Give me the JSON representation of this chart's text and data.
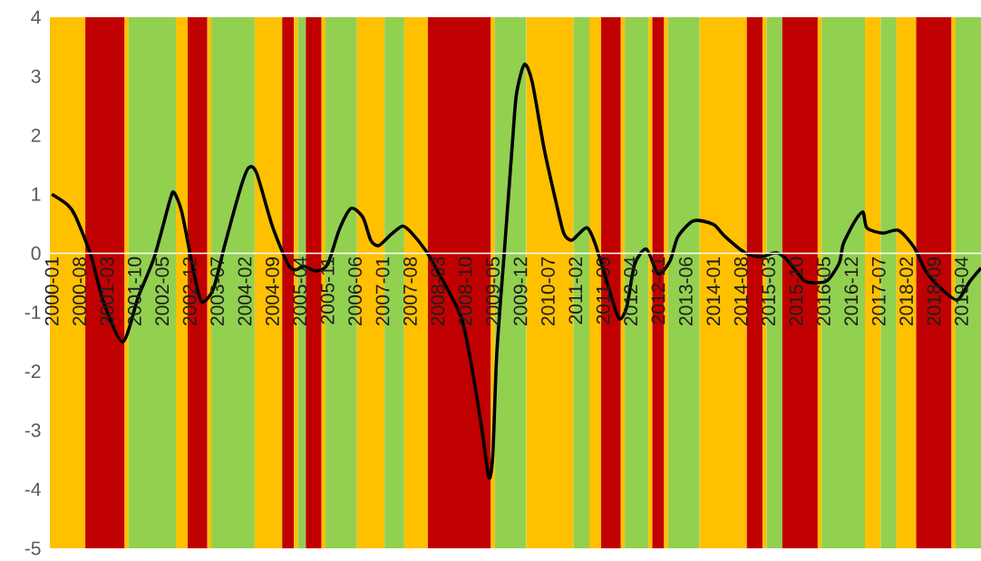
{
  "chart_data": {
    "type": "line",
    "series": [
      {
        "color": "#000000",
        "x": [
          "2000-01",
          "2000-05",
          "2000-07",
          "2000-11",
          "2001-02",
          "2001-07",
          "2001-11",
          "2002-03",
          "2002-07",
          "2002-08",
          "2002-10",
          "2003-01",
          "2003-03",
          "2003-06",
          "2003-09",
          "2004-01",
          "2004-03",
          "2004-05",
          "2004-09",
          "2005-01",
          "2005-03",
          "2005-05",
          "2005-08",
          "2005-11",
          "2006-02",
          "2006-05",
          "2006-08",
          "2006-10",
          "2006-12",
          "2007-03",
          "2007-06",
          "2007-08",
          "2007-12",
          "2008-03",
          "2008-06",
          "2008-09",
          "2008-11",
          "2009-02",
          "2009-04",
          "2009-05",
          "2009-06",
          "2009-08",
          "2009-10",
          "2009-11",
          "2010-01",
          "2010-03",
          "2010-06",
          "2010-09",
          "2010-11",
          "2011-01",
          "2011-03",
          "2011-05",
          "2011-07",
          "2011-10",
          "2012-01",
          "2012-03",
          "2012-05",
          "2012-08",
          "2012-11",
          "2013-02",
          "2013-04",
          "2013-08",
          "2014-01",
          "2014-04",
          "2014-09",
          "2015-01",
          "2015-05",
          "2015-08",
          "2015-12",
          "2016-03",
          "2016-06",
          "2016-09",
          "2016-10",
          "2017-01",
          "2017-03",
          "2017-04",
          "2017-08",
          "2017-12",
          "2018-04",
          "2018-07",
          "2018-11",
          "2019-03",
          "2019-06",
          "2019-09"
        ],
        "values": [
          1.0,
          0.82,
          0.63,
          -0.05,
          -0.8,
          -1.5,
          -0.73,
          -0.07,
          0.9,
          1.03,
          0.7,
          -0.31,
          -0.82,
          -0.61,
          0.16,
          1.12,
          1.45,
          1.36,
          0.46,
          -0.19,
          -0.28,
          -0.22,
          -0.3,
          -0.19,
          0.4,
          0.76,
          0.61,
          0.22,
          0.13,
          0.31,
          0.46,
          0.37,
          0.04,
          -0.31,
          -0.67,
          -1.09,
          -1.69,
          -2.88,
          -3.8,
          -3.4,
          -1.7,
          0.1,
          1.9,
          2.7,
          3.2,
          2.9,
          1.78,
          0.88,
          0.34,
          0.22,
          0.34,
          0.43,
          0.16,
          -0.49,
          -1.1,
          -0.91,
          -0.19,
          0.07,
          -0.35,
          -0.13,
          0.28,
          0.55,
          0.49,
          0.28,
          0.01,
          -0.06,
          0.01,
          -0.13,
          -0.46,
          -0.5,
          -0.46,
          -0.16,
          0.16,
          0.55,
          0.7,
          0.43,
          0.34,
          0.39,
          0.1,
          -0.31,
          -0.61,
          -0.79,
          -0.49,
          -0.25
        ]
      }
    ],
    "bands": [
      {
        "axis": "x",
        "from": "2000-01-01",
        "to": "2000-10-01",
        "color": "#ffc000"
      },
      {
        "axis": "x",
        "from": "2000-10-01",
        "to": "2001-08-01",
        "color": "#c00000"
      },
      {
        "axis": "x",
        "from": "2001-08-01",
        "to": "2001-09-01",
        "color": "#ffc000"
      },
      {
        "axis": "x",
        "from": "2001-09-01",
        "to": "2002-09-01",
        "color": "#92d050"
      },
      {
        "axis": "x",
        "from": "2002-09-01",
        "to": "2002-12-01",
        "color": "#ffc000"
      },
      {
        "axis": "x",
        "from": "2002-12-01",
        "to": "2003-05-01",
        "color": "#c00000"
      },
      {
        "axis": "x",
        "from": "2003-05-01",
        "to": "2003-06-01",
        "color": "#ffc000"
      },
      {
        "axis": "x",
        "from": "2003-06-01",
        "to": "2004-05-01",
        "color": "#92d050"
      },
      {
        "axis": "x",
        "from": "2004-05-01",
        "to": "2004-12-01",
        "color": "#ffc000"
      },
      {
        "axis": "x",
        "from": "2004-12-01",
        "to": "2005-03-01",
        "color": "#c00000"
      },
      {
        "axis": "x",
        "from": "2005-03-01",
        "to": "2005-04-01",
        "color": "#ffc000"
      },
      {
        "axis": "x",
        "from": "2005-04-01",
        "to": "2005-06-01",
        "color": "#92d050"
      },
      {
        "axis": "x",
        "from": "2005-06-01",
        "to": "2005-10-01",
        "color": "#c00000"
      },
      {
        "axis": "x",
        "from": "2005-10-01",
        "to": "2005-11-01",
        "color": "#ffc000"
      },
      {
        "axis": "x",
        "from": "2005-11-01",
        "to": "2006-07-01",
        "color": "#92d050"
      },
      {
        "axis": "x",
        "from": "2006-07-01",
        "to": "2007-02-01",
        "color": "#ffc000"
      },
      {
        "axis": "x",
        "from": "2007-02-01",
        "to": "2007-07-01",
        "color": "#92d050"
      },
      {
        "axis": "x",
        "from": "2007-07-01",
        "to": "2008-01-01",
        "color": "#ffc000"
      },
      {
        "axis": "x",
        "from": "2008-01-01",
        "to": "2009-05-01",
        "color": "#c00000"
      },
      {
        "axis": "x",
        "from": "2009-05-01",
        "to": "2009-06-01",
        "color": "#ffc000"
      },
      {
        "axis": "x",
        "from": "2009-06-01",
        "to": "2010-02-01",
        "color": "#92d050"
      },
      {
        "axis": "x",
        "from": "2010-02-01",
        "to": "2011-02-01",
        "color": "#ffc000"
      },
      {
        "axis": "x",
        "from": "2011-02-01",
        "to": "2011-06-01",
        "color": "#92d050"
      },
      {
        "axis": "x",
        "from": "2011-06-01",
        "to": "2011-09-01",
        "color": "#ffc000"
      },
      {
        "axis": "x",
        "from": "2011-09-01",
        "to": "2012-02-01",
        "color": "#c00000"
      },
      {
        "axis": "x",
        "from": "2012-02-01",
        "to": "2012-03-01",
        "color": "#ffc000"
      },
      {
        "axis": "x",
        "from": "2012-03-01",
        "to": "2012-09-01",
        "color": "#92d050"
      },
      {
        "axis": "x",
        "from": "2012-09-01",
        "to": "2012-10-01",
        "color": "#ffc000"
      },
      {
        "axis": "x",
        "from": "2012-10-01",
        "to": "2013-01-01",
        "color": "#c00000"
      },
      {
        "axis": "x",
        "from": "2013-01-01",
        "to": "2013-02-01",
        "color": "#ffc000"
      },
      {
        "axis": "x",
        "from": "2013-02-01",
        "to": "2013-10-01",
        "color": "#92d050"
      },
      {
        "axis": "x",
        "from": "2013-10-01",
        "to": "2014-10-01",
        "color": "#ffc000"
      },
      {
        "axis": "x",
        "from": "2014-10-01",
        "to": "2015-02-01",
        "color": "#c00000"
      },
      {
        "axis": "x",
        "from": "2015-02-01",
        "to": "2015-03-01",
        "color": "#ffc000"
      },
      {
        "axis": "x",
        "from": "2015-03-01",
        "to": "2015-07-01",
        "color": "#92d050"
      },
      {
        "axis": "x",
        "from": "2015-07-01",
        "to": "2016-04-01",
        "color": "#c00000"
      },
      {
        "axis": "x",
        "from": "2016-04-01",
        "to": "2016-05-01",
        "color": "#ffc000"
      },
      {
        "axis": "x",
        "from": "2016-05-01",
        "to": "2017-04-01",
        "color": "#92d050"
      },
      {
        "axis": "x",
        "from": "2017-04-01",
        "to": "2017-08-01",
        "color": "#ffc000"
      },
      {
        "axis": "x",
        "from": "2017-08-01",
        "to": "2017-12-01",
        "color": "#92d050"
      },
      {
        "axis": "x",
        "from": "2017-12-01",
        "to": "2018-05-01",
        "color": "#ffc000"
      },
      {
        "axis": "x",
        "from": "2018-05-01",
        "to": "2019-02-01",
        "color": "#c00000"
      },
      {
        "axis": "x",
        "from": "2019-02-01",
        "to": "2019-03-01",
        "color": "#ffc000"
      },
      {
        "axis": "x",
        "from": "2019-03-01",
        "to": "2019-09-15",
        "color": "#92d050"
      }
    ],
    "xlim": [
      "2000-01-01",
      "2019-09-15"
    ],
    "xticks": [
      "2000-01",
      "2000-08",
      "2001-03",
      "2001-10",
      "2002-05",
      "2002-12",
      "2003-07",
      "2004-02",
      "2004-09",
      "2005-04",
      "2005-11",
      "2006-06",
      "2007-01",
      "2007-08",
      "2008-03",
      "2008-10",
      "2009-05",
      "2009-12",
      "2010-07",
      "2011-02",
      "2011-09",
      "2012-04",
      "2012-11",
      "2013-06",
      "2014-01",
      "2014-08",
      "2015-03",
      "2015-10",
      "2016-05",
      "2016-12",
      "2017-07",
      "2018-02",
      "2018-09",
      "2019-04"
    ],
    "ylim": [
      -5,
      4
    ],
    "yticks": [
      -5,
      -4,
      -3,
      -2,
      -1,
      0,
      1,
      2,
      3,
      4
    ],
    "line_style": "solid"
  }
}
